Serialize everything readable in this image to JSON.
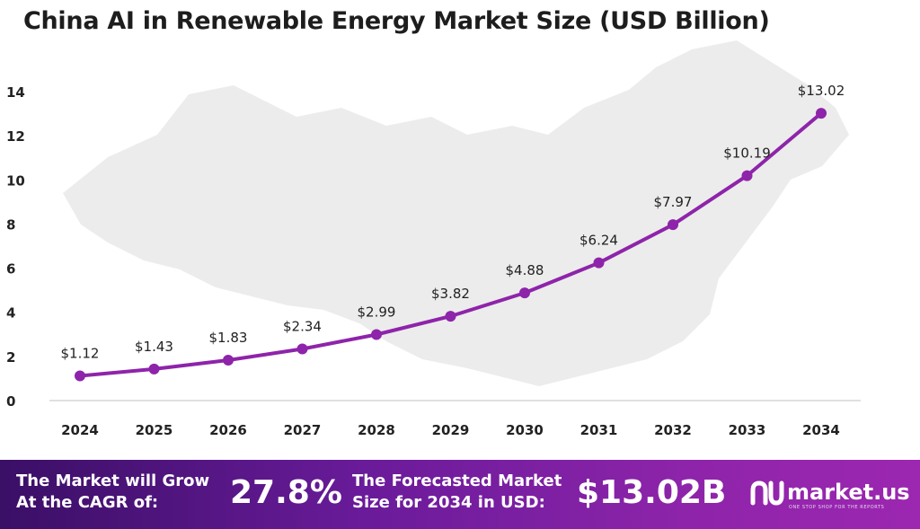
{
  "chart_data": {
    "type": "line",
    "title": "China AI in Renewable Energy Market Size (USD Billion)",
    "categories": [
      "2024",
      "2025",
      "2026",
      "2027",
      "2028",
      "2029",
      "2030",
      "2031",
      "2032",
      "2033",
      "2034"
    ],
    "values": [
      1.12,
      1.43,
      1.83,
      2.34,
      2.99,
      3.82,
      4.88,
      6.24,
      7.97,
      10.19,
      13.02
    ],
    "data_labels": [
      "$1.12",
      "$1.43",
      "$1.83",
      "$2.34",
      "$2.99",
      "$3.82",
      "$4.88",
      "$6.24",
      "$7.97",
      "$10.19",
      "$13.02"
    ],
    "y_ticks": [
      "0",
      "2",
      "4",
      "6",
      "8",
      "10",
      "12",
      "14"
    ],
    "ylim": [
      0,
      14
    ],
    "grid": false,
    "line_color": "#8e24aa"
  },
  "footer": {
    "cagr_label_line1": "The Market will Grow",
    "cagr_label_line2": "At the CAGR of:",
    "cagr_value": "27.8%",
    "forecast_label_line1": "The Forecasted Market",
    "forecast_label_line2": "Size for 2034 in USD:",
    "forecast_value": "$13.02B",
    "brand": "market.us",
    "brand_tagline": "ONE STOP SHOP FOR THE REPORTS",
    "logo_icon": "market-us-logo-icon"
  }
}
